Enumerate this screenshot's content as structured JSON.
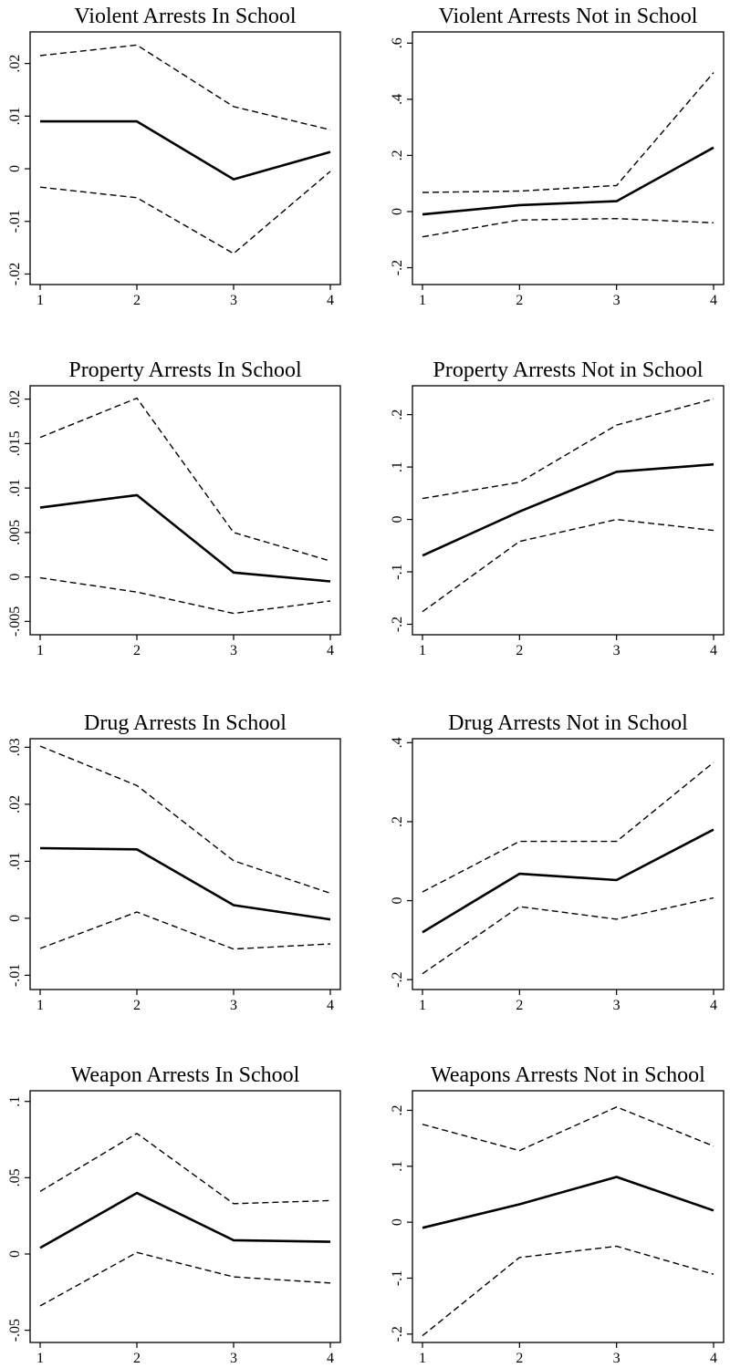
{
  "chart_data": [
    {
      "type": "line",
      "title": "Violent Arrests In School",
      "x": [
        1,
        2,
        3,
        4
      ],
      "x_ticks": [
        "1",
        "2",
        "3",
        "4"
      ],
      "ylim": [
        -0.022,
        0.026
      ],
      "y_ticks": [
        -0.02,
        -0.01,
        0,
        0.01,
        0.02
      ],
      "y_tick_labels": [
        "-.02",
        "-.01",
        "0",
        ".01",
        ".02"
      ],
      "series": [
        {
          "style": "solid",
          "values": [
            0.009,
            0.009,
            -0.002,
            0.0032
          ]
        },
        {
          "style": "dashed",
          "values": [
            0.0215,
            0.0235,
            0.0118,
            0.0074
          ]
        },
        {
          "style": "dashed",
          "values": [
            -0.0035,
            -0.0055,
            -0.0161,
            -0.0005
          ]
        }
      ]
    },
    {
      "type": "line",
      "title": "Violent Arrests Not in School",
      "x": [
        1,
        2,
        3,
        4
      ],
      "x_ticks": [
        "1",
        "2",
        "3",
        "4"
      ],
      "ylim": [
        -0.26,
        0.64
      ],
      "y_ticks": [
        -0.2,
        0,
        0.2,
        0.4,
        0.6
      ],
      "y_tick_labels": [
        "-.2",
        "0",
        ".2",
        ".4",
        ".6"
      ],
      "series": [
        {
          "style": "solid",
          "values": [
            -0.01,
            0.023,
            0.037,
            0.228
          ]
        },
        {
          "style": "dashed",
          "values": [
            0.068,
            0.073,
            0.093,
            0.495
          ]
        },
        {
          "style": "dashed",
          "values": [
            -0.09,
            -0.03,
            -0.025,
            -0.04
          ]
        }
      ]
    },
    {
      "type": "line",
      "title": "Property Arrests In School",
      "x": [
        1,
        2,
        3,
        4
      ],
      "x_ticks": [
        "1",
        "2",
        "3",
        "4"
      ],
      "ylim": [
        -0.0065,
        0.0215
      ],
      "y_ticks": [
        -0.005,
        0,
        0.005,
        0.01,
        0.015,
        0.02
      ],
      "y_tick_labels": [
        "-.005",
        "0",
        ".005",
        ".01",
        ".015",
        ".02"
      ],
      "series": [
        {
          "style": "solid",
          "values": [
            0.0078,
            0.0092,
            0.0005,
            -0.0005
          ]
        },
        {
          "style": "dashed",
          "values": [
            0.0157,
            0.0201,
            0.005,
            0.0018
          ]
        },
        {
          "style": "dashed",
          "values": [
            -0.0001,
            -0.0017,
            -0.0041,
            -0.0027
          ]
        }
      ]
    },
    {
      "type": "line",
      "title": "Property Arrests Not in School",
      "x": [
        1,
        2,
        3,
        4
      ],
      "x_ticks": [
        "1",
        "2",
        "3",
        "4"
      ],
      "ylim": [
        -0.22,
        0.255
      ],
      "y_ticks": [
        -0.2,
        -0.1,
        0,
        0.1,
        0.2
      ],
      "y_tick_labels": [
        "-.2",
        "-.1",
        "0",
        ".1",
        ".2"
      ],
      "series": [
        {
          "style": "solid",
          "values": [
            -0.069,
            0.015,
            0.091,
            0.105
          ]
        },
        {
          "style": "dashed",
          "values": [
            0.04,
            0.071,
            0.18,
            0.23
          ]
        },
        {
          "style": "dashed",
          "values": [
            -0.176,
            -0.042,
            0.0,
            -0.021
          ]
        }
      ]
    },
    {
      "type": "line",
      "title": "Drug Arrests In School",
      "x": [
        1,
        2,
        3,
        4
      ],
      "x_ticks": [
        "1",
        "2",
        "3",
        "4"
      ],
      "ylim": [
        -0.0125,
        0.0315
      ],
      "y_ticks": [
        -0.01,
        0,
        0.01,
        0.02,
        0.03
      ],
      "y_tick_labels": [
        "-.01",
        "0",
        ".01",
        ".02",
        ".03"
      ],
      "series": [
        {
          "style": "solid",
          "values": [
            0.0123,
            0.0121,
            0.0023,
            -0.0002
          ]
        },
        {
          "style": "dashed",
          "values": [
            0.0302,
            0.0233,
            0.0101,
            0.0044
          ]
        },
        {
          "style": "dashed",
          "values": [
            -0.0053,
            0.0011,
            -0.0054,
            -0.0045
          ]
        }
      ]
    },
    {
      "type": "line",
      "title": "Drug Arrests Not in School",
      "x": [
        1,
        2,
        3,
        4
      ],
      "x_ticks": [
        "1",
        "2",
        "3",
        "4"
      ],
      "ylim": [
        -0.225,
        0.41
      ],
      "y_ticks": [
        -0.2,
        0,
        0.2,
        0.4
      ],
      "y_tick_labels": [
        "-.2",
        "0",
        ".2",
        ".4"
      ],
      "series": [
        {
          "style": "solid",
          "values": [
            -0.08,
            0.068,
            0.052,
            0.18
          ]
        },
        {
          "style": "dashed",
          "values": [
            0.022,
            0.15,
            0.15,
            0.35
          ]
        },
        {
          "style": "dashed",
          "values": [
            -0.185,
            -0.015,
            -0.047,
            0.007
          ]
        }
      ]
    },
    {
      "type": "line",
      "title": "Weapon Arrests In School",
      "x": [
        1,
        2,
        3,
        4
      ],
      "x_ticks": [
        "1",
        "2",
        "3",
        "4"
      ],
      "ylim": [
        -0.058,
        0.107
      ],
      "y_ticks": [
        -0.05,
        0,
        0.05,
        0.1
      ],
      "y_tick_labels": [
        "-.05",
        "0",
        ".05",
        ".1"
      ],
      "series": [
        {
          "style": "solid",
          "values": [
            0.004,
            0.04,
            0.009,
            0.008
          ]
        },
        {
          "style": "dashed",
          "values": [
            0.041,
            0.079,
            0.033,
            0.035
          ]
        },
        {
          "style": "dashed",
          "values": [
            -0.034,
            0.001,
            -0.015,
            -0.019
          ]
        }
      ]
    },
    {
      "type": "line",
      "title": "Weapons Arrests Not in School",
      "x": [
        1,
        2,
        3,
        4
      ],
      "x_ticks": [
        "1",
        "2",
        "3",
        "4"
      ],
      "ylim": [
        -0.215,
        0.235
      ],
      "y_ticks": [
        -0.2,
        -0.1,
        0,
        0.1,
        0.2
      ],
      "y_tick_labels": [
        "-.2",
        "-.1",
        "0",
        ".1",
        ".2"
      ],
      "series": [
        {
          "style": "solid",
          "values": [
            -0.01,
            0.032,
            0.081,
            0.021
          ]
        },
        {
          "style": "dashed",
          "values": [
            0.175,
            0.128,
            0.206,
            0.136
          ]
        },
        {
          "style": "dashed",
          "values": [
            -0.203,
            -0.063,
            -0.043,
            -0.093
          ]
        }
      ]
    }
  ]
}
